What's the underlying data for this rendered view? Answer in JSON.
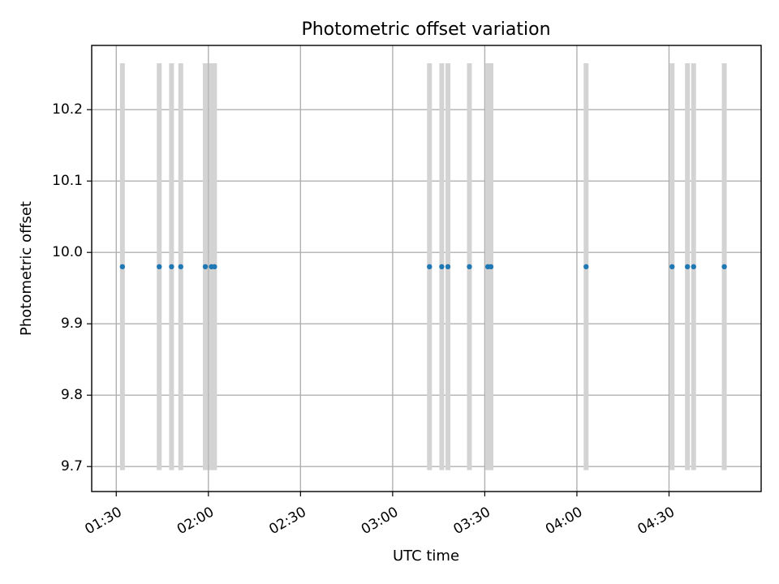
{
  "chart_data": {
    "type": "scatter",
    "title": "Photometric offset variation",
    "xlabel": "UTC time",
    "ylabel": "Photometric offset",
    "x_ticks": [
      "01:30",
      "02:00",
      "02:30",
      "03:00",
      "03:30",
      "04:00",
      "04:30"
    ],
    "y_ticks": [
      "9.7",
      "9.8",
      "9.9",
      "10.0",
      "10.1",
      "10.2"
    ],
    "xlim": [
      "01:22",
      "05:00"
    ],
    "ylim": [
      9.665,
      10.29
    ],
    "grid": true,
    "legend": "none",
    "colors": {
      "marker": "#1f77b4",
      "error_bar": "#d3d3d3"
    },
    "error_bar_range": [
      9.695,
      10.265
    ],
    "series": [
      {
        "x": [
          "01:32",
          "01:44",
          "01:48",
          "01:51",
          "01:59",
          "02:01",
          "02:02",
          "03:12",
          "03:16",
          "03:18",
          "03:25",
          "03:31",
          "03:32",
          "04:03",
          "04:31",
          "04:36",
          "04:38",
          "04:48"
        ],
        "y": [
          9.98,
          9.98,
          9.98,
          9.98,
          9.98,
          9.98,
          9.98,
          9.98,
          9.98,
          9.98,
          9.98,
          9.98,
          9.98,
          9.98,
          9.98,
          9.98,
          9.98,
          9.98
        ]
      }
    ]
  }
}
